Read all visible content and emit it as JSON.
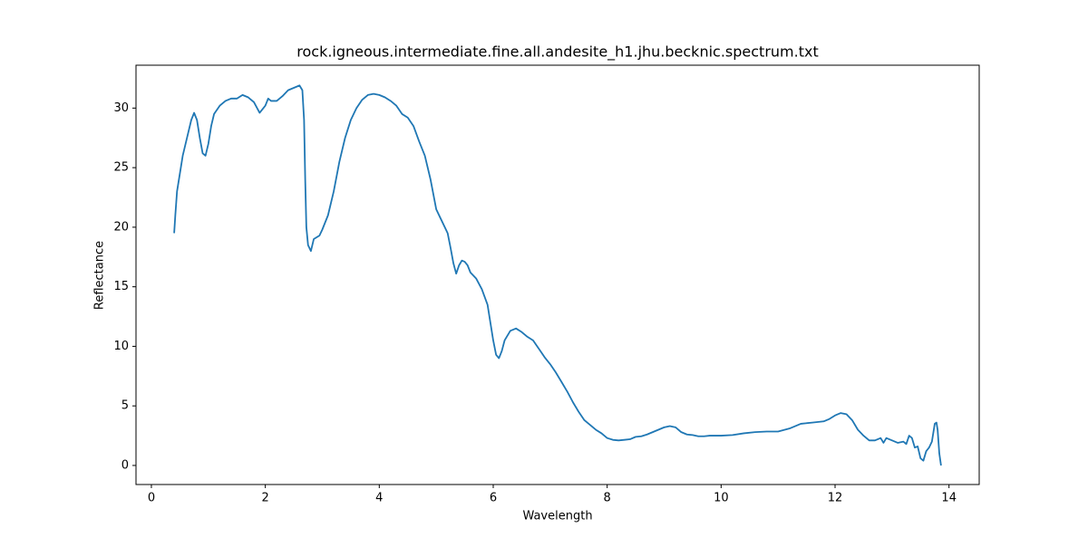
{
  "chart_data": {
    "type": "line",
    "title": "rock.igneous.intermediate.fine.all.andesite_h1.jhu.becknic.spectrum.txt",
    "x_label": "Wavelength",
    "y_label": "Reflectance",
    "xlim": [
      -0.27,
      14.53
    ],
    "ylim": [
      -1.6,
      33.6
    ],
    "xticks": [
      0,
      2,
      4,
      6,
      8,
      10,
      12,
      14
    ],
    "yticks": [
      0,
      5,
      10,
      15,
      20,
      25,
      30
    ],
    "grid": false,
    "series": [
      {
        "color": "#1f77b4",
        "x": [
          0.4,
          0.42,
          0.45,
          0.5,
          0.55,
          0.6,
          0.65,
          0.7,
          0.75,
          0.8,
          0.85,
          0.9,
          0.95,
          1.0,
          1.05,
          1.1,
          1.2,
          1.3,
          1.4,
          1.5,
          1.6,
          1.7,
          1.8,
          1.9,
          2.0,
          2.05,
          2.1,
          2.2,
          2.3,
          2.4,
          2.5,
          2.6,
          2.65,
          2.68,
          2.7,
          2.72,
          2.75,
          2.8,
          2.85,
          2.95,
          3.0,
          3.1,
          3.2,
          3.3,
          3.4,
          3.5,
          3.6,
          3.7,
          3.8,
          3.9,
          4.0,
          4.1,
          4.2,
          4.3,
          4.4,
          4.5,
          4.6,
          4.7,
          4.8,
          4.9,
          5.0,
          5.1,
          5.2,
          5.25,
          5.3,
          5.35,
          5.4,
          5.45,
          5.5,
          5.55,
          5.6,
          5.7,
          5.8,
          5.9,
          5.95,
          6.0,
          6.05,
          6.1,
          6.15,
          6.2,
          6.3,
          6.4,
          6.5,
          6.6,
          6.7,
          6.8,
          6.9,
          7.0,
          7.1,
          7.2,
          7.3,
          7.4,
          7.5,
          7.6,
          7.7,
          7.8,
          7.9,
          8.0,
          8.1,
          8.2,
          8.3,
          8.4,
          8.5,
          8.6,
          8.7,
          8.8,
          8.9,
          9.0,
          9.1,
          9.2,
          9.3,
          9.4,
          9.5,
          9.6,
          9.7,
          9.8,
          9.9,
          10.0,
          10.2,
          10.4,
          10.6,
          10.8,
          11.0,
          11.2,
          11.4,
          11.6,
          11.8,
          11.9,
          12.0,
          12.1,
          12.2,
          12.3,
          12.4,
          12.5,
          12.6,
          12.7,
          12.8,
          12.85,
          12.9,
          13.0,
          13.1,
          13.2,
          13.25,
          13.3,
          13.35,
          13.4,
          13.45,
          13.5,
          13.55,
          13.6,
          13.65,
          13.7,
          13.75,
          13.78,
          13.8,
          13.83,
          13.86
        ],
        "values": [
          19.5,
          21,
          23,
          24.5,
          26,
          27,
          28,
          29,
          29.6,
          29,
          27.5,
          26.2,
          26,
          27,
          28.5,
          29.5,
          30.2,
          30.6,
          30.8,
          30.8,
          31.1,
          30.9,
          30.5,
          29.6,
          30.2,
          30.8,
          30.6,
          30.6,
          31.0,
          31.5,
          31.7,
          31.9,
          31.5,
          29,
          24,
          20,
          18.5,
          18.0,
          19,
          19.3,
          19.8,
          21,
          23,
          25.5,
          27.5,
          29,
          30,
          30.7,
          31.1,
          31.2,
          31.1,
          30.9,
          30.6,
          30.2,
          29.5,
          29.2,
          28.5,
          27.2,
          26.0,
          24,
          21.5,
          20.5,
          19.5,
          18.3,
          17,
          16.1,
          16.8,
          17.2,
          17.1,
          16.8,
          16.2,
          15.7,
          14.8,
          13.5,
          12,
          10.5,
          9.3,
          9.0,
          9.6,
          10.5,
          11.3,
          11.5,
          11.2,
          10.8,
          10.5,
          9.8,
          9.1,
          8.5,
          7.8,
          7.0,
          6.2,
          5.3,
          4.5,
          3.8,
          3.4,
          3.0,
          2.7,
          2.3,
          2.15,
          2.1,
          2.15,
          2.2,
          2.4,
          2.45,
          2.6,
          2.8,
          3.0,
          3.2,
          3.3,
          3.2,
          2.8,
          2.6,
          2.55,
          2.45,
          2.45,
          2.5,
          2.5,
          2.5,
          2.55,
          2.7,
          2.8,
          2.85,
          2.85,
          3.1,
          3.5,
          3.6,
          3.7,
          3.9,
          4.2,
          4.4,
          4.3,
          3.8,
          3.0,
          2.5,
          2.1,
          2.1,
          2.3,
          1.9,
          2.3,
          2.1,
          1.9,
          2.0,
          1.8,
          2.5,
          2.3,
          1.5,
          1.6,
          0.6,
          0.4,
          1.2,
          1.5,
          2.0,
          3.5,
          3.6,
          3.0,
          1.0,
          0.0
        ]
      }
    ]
  }
}
